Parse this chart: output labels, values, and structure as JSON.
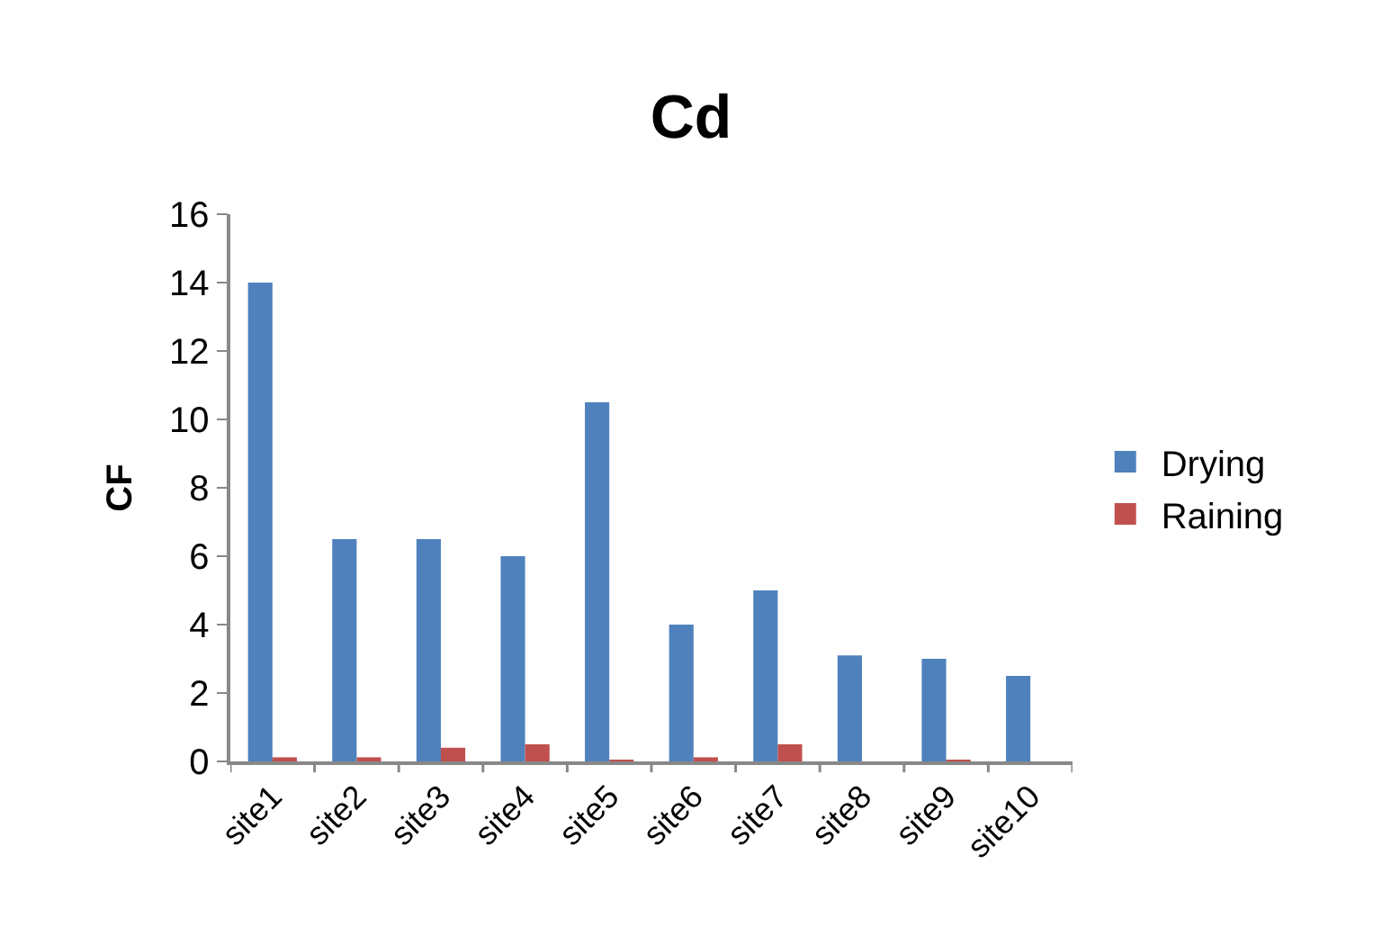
{
  "chart_data": {
    "type": "bar",
    "title": "Cd",
    "ylabel": "CF",
    "categories": [
      "site1",
      "site2",
      "site3",
      "site4",
      "site5",
      "site6",
      "site7",
      "site8",
      "site9",
      "site10"
    ],
    "series": [
      {
        "name": "Drying",
        "color": "#4f81bd",
        "values": [
          14,
          6.5,
          6.5,
          6,
          10.5,
          4,
          5,
          3.1,
          3,
          2.5
        ]
      },
      {
        "name": "Raining",
        "color": "#c0504d",
        "values": [
          0.12,
          0.12,
          0.4,
          0.5,
          0.03,
          0.12,
          0.5,
          0,
          0.02,
          0
        ]
      }
    ],
    "ylim": [
      0,
      16
    ],
    "yticks": [
      0,
      2,
      4,
      6,
      8,
      10,
      12,
      14,
      16
    ],
    "legend": "right"
  }
}
